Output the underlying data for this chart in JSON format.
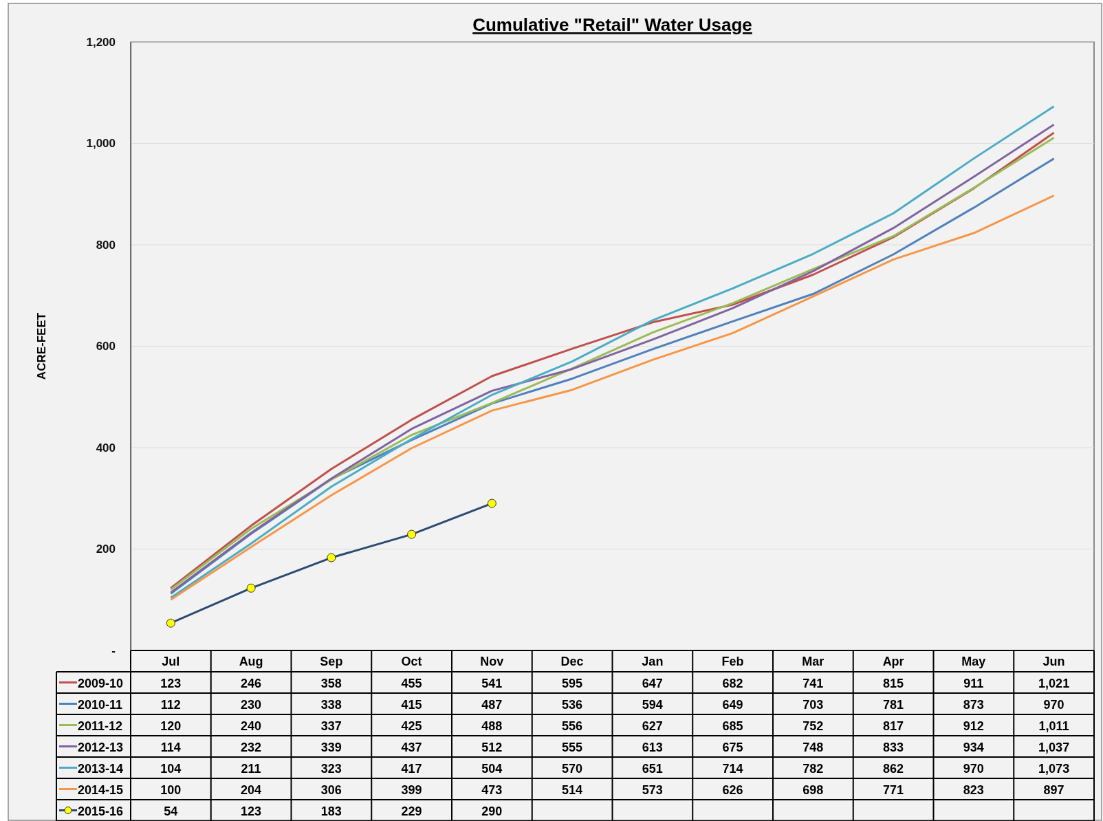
{
  "chart_data": {
    "type": "line",
    "title": "Cumulative \"Retail\" Water Usage",
    "ylabel": "ACRE-FEET",
    "categories": [
      "Jul",
      "Aug",
      "Sep",
      "Oct",
      "Nov",
      "Dec",
      "Jan",
      "Feb",
      "Mar",
      "Apr",
      "May",
      "Jun"
    ],
    "ylim": [
      0,
      1200
    ],
    "yticks": [
      {
        "value": 0,
        "label": "-"
      },
      {
        "value": 200,
        "label": "200"
      },
      {
        "value": 400,
        "label": "400"
      },
      {
        "value": 600,
        "label": "600"
      },
      {
        "value": 800,
        "label": "800"
      },
      {
        "value": 1000,
        "label": "1,000"
      },
      {
        "value": 1200,
        "label": "1,200"
      }
    ],
    "grid": "y",
    "legend": "bottom left",
    "marker": "none",
    "series": [
      {
        "name": "2009-10",
        "color": "#c0504d",
        "values": [
          123,
          246,
          358,
          455,
          541,
          595,
          647,
          682,
          741,
          815,
          911,
          1021
        ],
        "value_labels": [
          "123",
          "246",
          "358",
          "455",
          "541",
          "595",
          "647",
          "682",
          "741",
          "815",
          "911",
          "1,021"
        ]
      },
      {
        "name": "2010-11",
        "color": "#4f81bd",
        "values": [
          112,
          230,
          338,
          415,
          487,
          536,
          594,
          649,
          703,
          781,
          873,
          970
        ],
        "value_labels": [
          "112",
          "230",
          "338",
          "415",
          "487",
          "536",
          "594",
          "649",
          "703",
          "781",
          "873",
          "970"
        ]
      },
      {
        "name": "2011-12",
        "color": "#9bbb59",
        "values": [
          120,
          240,
          337,
          425,
          488,
          556,
          627,
          685,
          752,
          817,
          912,
          1011
        ],
        "value_labels": [
          "120",
          "240",
          "337",
          "425",
          "488",
          "556",
          "627",
          "685",
          "752",
          "817",
          "912",
          "1,011"
        ]
      },
      {
        "name": "2012-13",
        "color": "#8064a2",
        "values": [
          114,
          232,
          339,
          437,
          512,
          555,
          613,
          675,
          748,
          833,
          934,
          1037
        ],
        "value_labels": [
          "114",
          "232",
          "339",
          "437",
          "512",
          "555",
          "613",
          "675",
          "748",
          "833",
          "934",
          "1,037"
        ]
      },
      {
        "name": "2013-14",
        "color": "#4bacc6",
        "values": [
          104,
          211,
          323,
          417,
          504,
          570,
          651,
          714,
          782,
          862,
          970,
          1073
        ],
        "value_labels": [
          "104",
          "211",
          "323",
          "417",
          "504",
          "570",
          "651",
          "714",
          "782",
          "862",
          "970",
          "1,073"
        ]
      },
      {
        "name": "2014-15",
        "color": "#f79646",
        "values": [
          100,
          204,
          306,
          399,
          473,
          514,
          573,
          626,
          698,
          771,
          823,
          897
        ],
        "value_labels": [
          "100",
          "204",
          "306",
          "399",
          "473",
          "514",
          "573",
          "626",
          "698",
          "771",
          "823",
          "897"
        ]
      },
      {
        "name": "2015-16",
        "color": "#2c4a73",
        "marker": "circle",
        "values": [
          54,
          123,
          183,
          229,
          290,
          null,
          null,
          null,
          null,
          null,
          null,
          null
        ],
        "value_labels": [
          "54",
          "123",
          "183",
          "229",
          "290",
          null,
          null,
          null,
          null,
          null,
          null,
          null
        ]
      }
    ]
  }
}
